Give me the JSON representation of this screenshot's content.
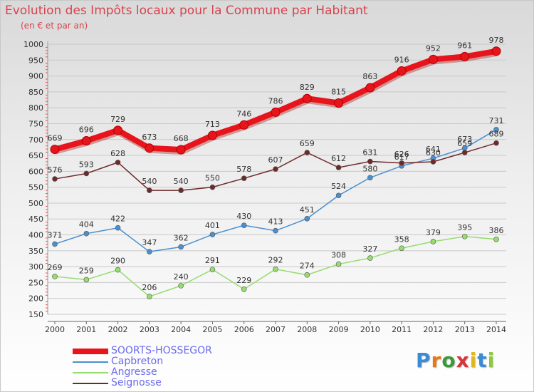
{
  "title": "Evolution des Impôts locaux pour la Commune par Habitant",
  "subtitle": "(en € et par an)",
  "brand": "Proxiti",
  "colors": {
    "title": "#d8434f",
    "legend_text": "#6b6bee",
    "grid": "#c8c8c8"
  },
  "chart_data": {
    "type": "line",
    "title": "Evolution des Impôts locaux pour la Commune par Habitant",
    "subtitle": "(en € et par an)",
    "xlabel": "",
    "ylabel": "",
    "ylim": [
      150,
      1000
    ],
    "yticks": [
      150,
      200,
      250,
      300,
      350,
      400,
      450,
      500,
      550,
      600,
      650,
      700,
      750,
      800,
      850,
      900,
      950,
      1000
    ],
    "grid": true,
    "legend_position": "bottom-left",
    "categories": [
      "2000",
      "2001",
      "2002",
      "2003",
      "2004",
      "2005",
      "2006",
      "2007",
      "2008",
      "2009",
      "2010",
      "2011",
      "2012",
      "2013",
      "2014"
    ],
    "series": [
      {
        "name": "SOORTS-HOSSEGOR",
        "color": "#e8141c",
        "emphasis": true,
        "values": [
          669,
          696,
          729,
          673,
          668,
          713,
          746,
          786,
          829,
          815,
          863,
          916,
          952,
          961,
          978
        ]
      },
      {
        "name": "Capbreton",
        "color": "#4a8fd0",
        "emphasis": false,
        "values": [
          371,
          404,
          422,
          347,
          362,
          401,
          430,
          413,
          451,
          524,
          580,
          617,
          641,
          673,
          731
        ]
      },
      {
        "name": "Angresse",
        "color": "#96dc6e",
        "emphasis": false,
        "values": [
          269,
          259,
          290,
          206,
          240,
          291,
          229,
          292,
          274,
          308,
          327,
          358,
          379,
          395,
          386
        ]
      },
      {
        "name": "Seignosse",
        "color": "#6e2a2a",
        "emphasis": false,
        "values": [
          576,
          593,
          628,
          540,
          540,
          550,
          578,
          607,
          659,
          612,
          631,
          626,
          630,
          659,
          689
        ]
      }
    ]
  }
}
